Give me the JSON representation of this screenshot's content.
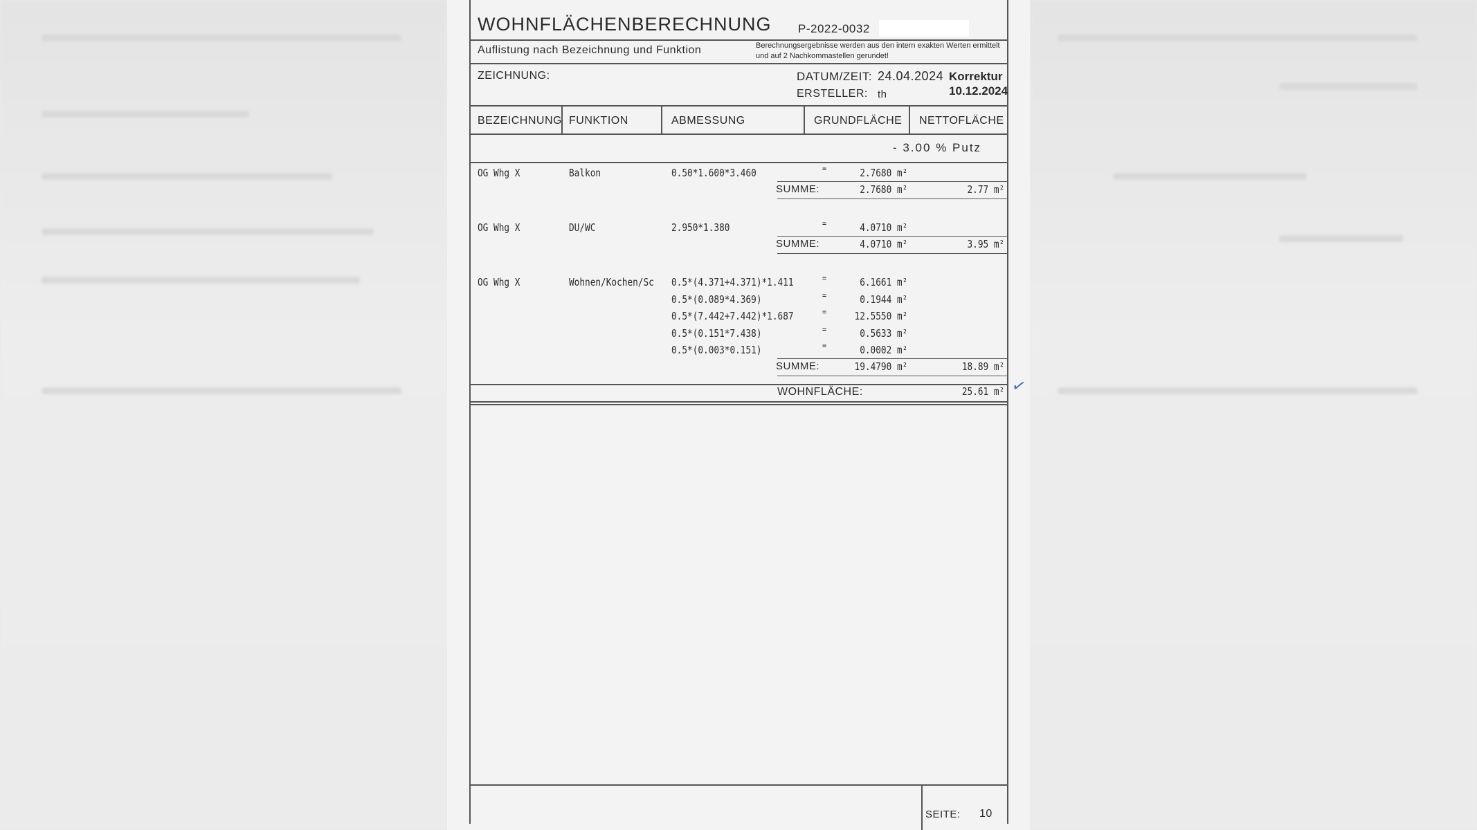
{
  "header": {
    "title": "WOHNFLÄCHENBERECHNUNG",
    "project_no": "P-2022-0032",
    "subtitle": "Auflistung nach Bezeichnung und Funktion",
    "note_line1": "Berechnungsergebnisse werden aus den intern exakten Werten ermittelt",
    "note_line2": "und auf 2 Nachkommastellen gerundet!",
    "drawing_label": "ZEICHNUNG:",
    "date_label": "DATUM/ZEIT:",
    "date_value": "24.04.2024",
    "author_label": "ERSTELLER:",
    "author_value": "th",
    "correction_label": "Korrektur",
    "correction_date": "10.12.2024"
  },
  "columns": [
    "BEZEICHNUNG",
    "FUNKTION",
    "ABMESSUNG",
    "GRUNDFLÄCHE",
    "NETTOFLÄCHE"
  ],
  "deduction": "-  3.00 % Putz",
  "unit": "m²",
  "groups": [
    {
      "bezeichnung": "OG Whg X",
      "funktion": "Balkon",
      "lines": [
        {
          "abmessung": "0.50*1.600*3.460",
          "eq": "=",
          "value": "2.7680"
        }
      ],
      "summe_label": "SUMME:",
      "summe": "2.7680",
      "netto": "2.77"
    },
    {
      "bezeichnung": "OG Whg X",
      "funktion": "DU/WC",
      "lines": [
        {
          "abmessung": "2.950*1.380",
          "eq": "=",
          "value": "4.0710"
        }
      ],
      "summe_label": "SUMME:",
      "summe": "4.0710",
      "netto": "3.95"
    },
    {
      "bezeichnung": "OG Whg X",
      "funktion": "Wohnen/Kochen/Sc",
      "lines": [
        {
          "abmessung": "0.5*(4.371+4.371)*1.411",
          "eq": "=",
          "value": "6.1661"
        },
        {
          "abmessung": "0.5*(0.089*4.369)",
          "eq": "=",
          "value": "0.1944"
        },
        {
          "abmessung": "0.5*(7.442+7.442)*1.687",
          "eq": "=",
          "value": "12.5550"
        },
        {
          "abmessung": "0.5*(0.151*7.438)",
          "eq": "=",
          "value": "0.5633"
        },
        {
          "abmessung": "0.5*(0.003*0.151)",
          "eq": "=",
          "value": "0.0002"
        }
      ],
      "summe_label": "SUMME:",
      "summe": "19.4790",
      "netto": "18.89"
    }
  ],
  "total": {
    "label": "WOHNFLÄCHE:",
    "value": "25.61"
  },
  "footer": {
    "page_label": "SEITE:",
    "page_value": "10"
  },
  "check_mark": "✓"
}
